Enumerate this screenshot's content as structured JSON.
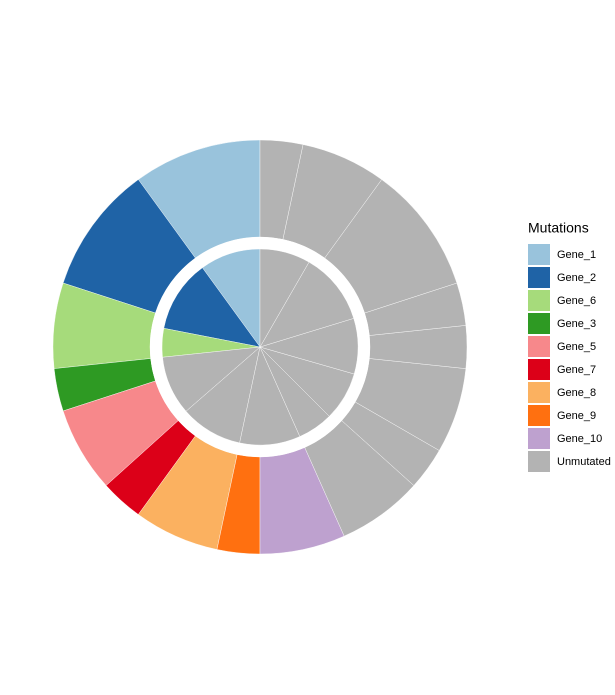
{
  "chart_data": {
    "type": "nested-pie",
    "legend_title": "Mutations",
    "legend_position": "right",
    "series": [
      {
        "name": "Gene_1",
        "color": "#99c3dc",
        "inner": [
          36
        ],
        "outer": [
          3
        ]
      },
      {
        "name": "Gene_2",
        "color": "#1f63a6",
        "inner": [
          43
        ],
        "outer": [
          3
        ]
      },
      {
        "name": "Gene_6",
        "color": "#a6db7b",
        "inner": [
          17
        ],
        "outer": [
          2
        ]
      },
      {
        "name": "Gene_3",
        "color": "#2e9a23",
        "inner": [],
        "outer": [
          1
        ]
      },
      {
        "name": "Gene_5",
        "color": "#f7888b",
        "inner": [],
        "outer": [
          2
        ]
      },
      {
        "name": "Gene_7",
        "color": "#dc0018",
        "inner": [],
        "outer": [
          1
        ]
      },
      {
        "name": "Gene_8",
        "color": "#fbb160",
        "inner": [],
        "outer": [
          2
        ]
      },
      {
        "name": "Gene_9",
        "color": "#ff7010",
        "inner": [],
        "outer": [
          1
        ]
      },
      {
        "name": "Gene_10",
        "color": "#bea1cf",
        "inner": [],
        "outer": [
          2
        ]
      },
      {
        "name": "Unmutated",
        "color": "#b3b3b3",
        "inner": [
          35,
          37,
          36,
          21,
          29,
          33,
          43,
          30
        ],
        "outer": [
          2,
          1,
          2,
          1,
          1,
          3,
          2,
          1
        ]
      }
    ]
  }
}
